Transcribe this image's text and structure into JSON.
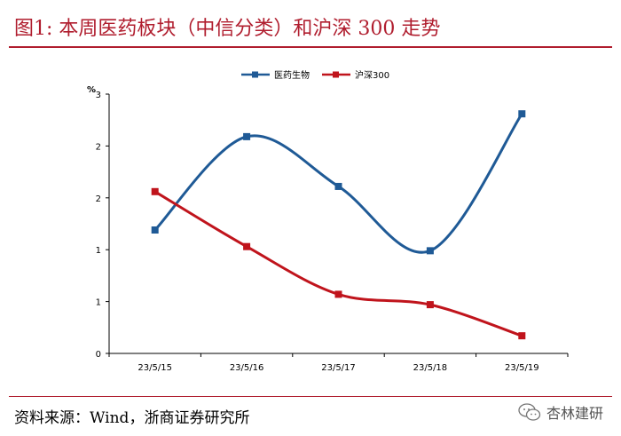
{
  "header": {
    "title": "图1:    本周医药板块（中信分类）和沪深 300 走势"
  },
  "footer": {
    "source": "资料来源：Wind，浙商证券研究所",
    "watermark": "杏林建研"
  },
  "colors": {
    "accent": "#b01d2e",
    "series_blue": "#1f5a96",
    "series_red": "#c0141c"
  },
  "chart_data": {
    "type": "line",
    "title": "",
    "xlabel": "",
    "ylabel": "%",
    "categories": [
      "23/5/15",
      "23/5/16",
      "23/5/17",
      "23/5/18",
      "23/5/19"
    ],
    "y_tick_labels": [
      "0",
      "1",
      "1",
      "2",
      "2",
      "3"
    ],
    "ylim": [
      0,
      2.5
    ],
    "legend_position": "top",
    "series": [
      {
        "name": "医药生物",
        "color": "#1f5a96",
        "marker": "square",
        "values": [
          1.19,
          2.09,
          1.61,
          0.99,
          2.31
        ]
      },
      {
        "name": "沪深300",
        "color": "#c0141c",
        "marker": "square",
        "values": [
          1.56,
          1.03,
          0.57,
          0.47,
          0.17
        ]
      }
    ]
  }
}
